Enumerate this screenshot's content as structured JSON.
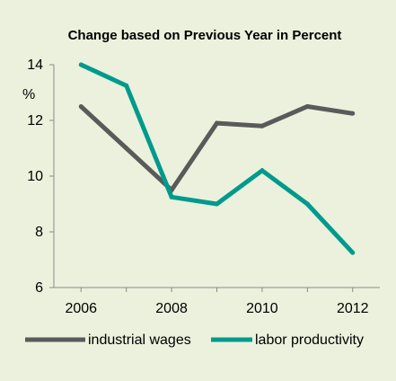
{
  "chart_data": {
    "type": "line",
    "title": "Change based on Previous Year in Percent",
    "ylabel": "%",
    "xlabel": "",
    "x": [
      2006,
      2007,
      2008,
      2009,
      2010,
      2011,
      2012
    ],
    "x_ticks": [
      "2006",
      "2008",
      "2010",
      "2012"
    ],
    "y_ticks": [
      "6",
      "8",
      "10",
      "12",
      "14"
    ],
    "ylim": [
      6,
      14
    ],
    "grid": false,
    "legend_position": "bottom",
    "series": [
      {
        "name": "industrial wages",
        "color": "#5a5a5a",
        "values": [
          12.5,
          11.0,
          9.5,
          11.9,
          11.8,
          12.5,
          12.25
        ]
      },
      {
        "name": "labor productivity",
        "color": "#009a8c",
        "values": [
          14.0,
          13.25,
          9.25,
          9.0,
          10.2,
          9.0,
          7.25
        ]
      }
    ]
  }
}
